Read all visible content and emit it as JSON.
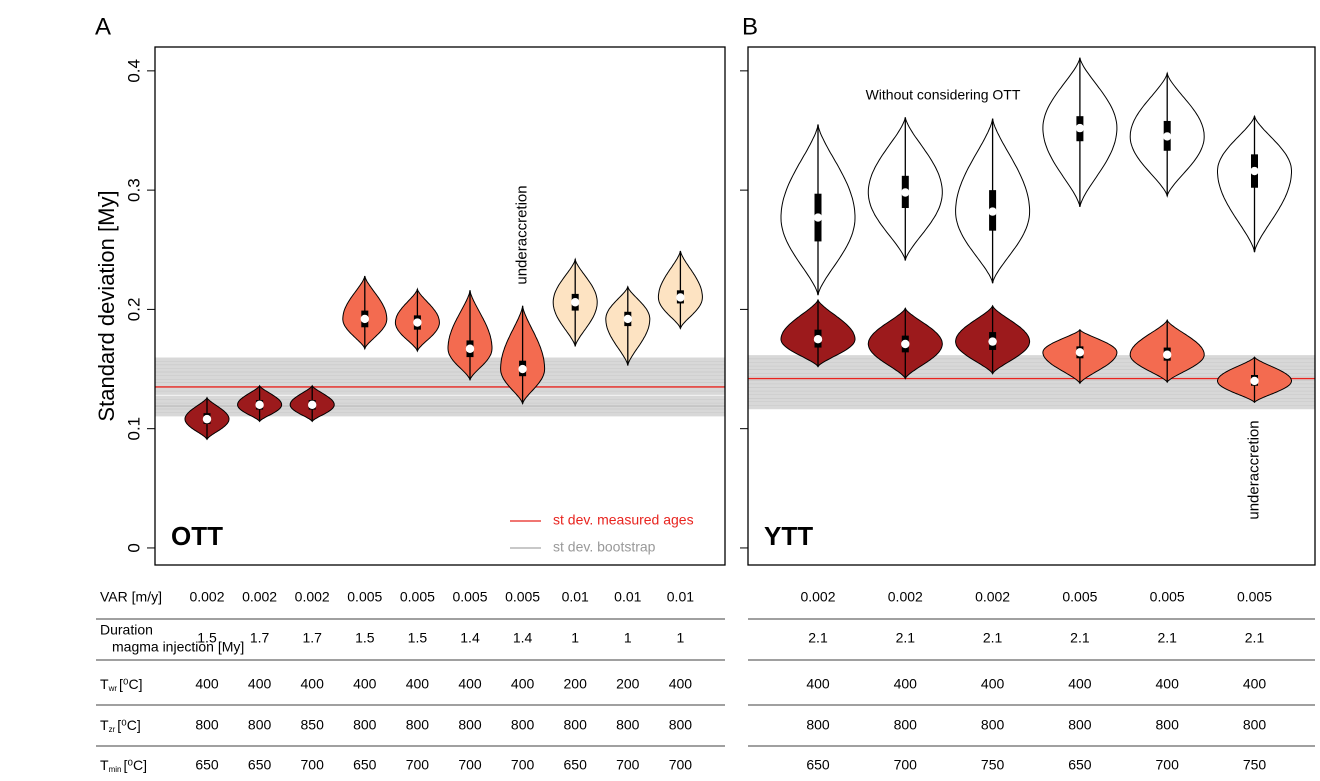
{
  "chart_data": [
    {
      "type": "violin",
      "panel_label": "A",
      "label": "OTT",
      "ylabel": "Standard deviation [My]",
      "ylim": [
        -0.0143,
        0.42
      ],
      "yticks": [
        0,
        0.1,
        0.2,
        0.3,
        0.4
      ],
      "show_ytick_labels": true,
      "bootstrap": {
        "name": "st dev. bootstrap",
        "color": "#a8a8a8",
        "values": [
          0.112,
          0.115,
          0.118,
          0.12,
          0.123,
          0.126,
          0.13,
          0.133,
          0.137,
          0.14,
          0.143,
          0.146,
          0.149,
          0.152,
          0.155,
          0.158
        ]
      },
      "reference_line": {
        "name": "st dev. measured ages",
        "color": "#e8241f",
        "value": 0.135
      },
      "annotations": [
        {
          "text": "underaccretion"
        }
      ],
      "series": [
        {
          "colors": [
            "#9c1a1c",
            "#9c1a1c",
            "#9c1a1c",
            "#f36b50",
            "#f36b50",
            "#f36b50",
            "#f36b50",
            "#fde3c2",
            "#fde3c2",
            "#fde3c2"
          ],
          "median": [
            0.108,
            0.12,
            0.12,
            0.192,
            0.189,
            0.167,
            0.15,
            0.206,
            0.192,
            0.21
          ],
          "q1": [
            0.104,
            0.116,
            0.116,
            0.185,
            0.183,
            0.16,
            0.144,
            0.199,
            0.186,
            0.205
          ],
          "q3": [
            0.113,
            0.124,
            0.124,
            0.199,
            0.195,
            0.174,
            0.157,
            0.213,
            0.198,
            0.216
          ],
          "min": [
            0.091,
            0.106,
            0.106,
            0.167,
            0.165,
            0.141,
            0.121,
            0.169,
            0.153,
            0.184
          ],
          "max": [
            0.126,
            0.136,
            0.136,
            0.228,
            0.217,
            0.216,
            0.203,
            0.242,
            0.219,
            0.249
          ]
        }
      ]
    },
    {
      "type": "violin",
      "panel_label": "B",
      "label": "YTT",
      "ylim": [
        -0.0143,
        0.42
      ],
      "yticks": [
        0,
        0.1,
        0.2,
        0.3,
        0.4
      ],
      "show_ytick_labels": false,
      "bootstrap": {
        "color": "#a8a8a8",
        "values": [
          0.118,
          0.121,
          0.124,
          0.127,
          0.13,
          0.133,
          0.136,
          0.139,
          0.142,
          0.145,
          0.148,
          0.151,
          0.154,
          0.157,
          0.16
        ]
      },
      "reference_line": {
        "color": "#e8241f",
        "value": 0.142
      },
      "annotations": [
        {
          "text": "underaccretion"
        }
      ],
      "series": [
        {
          "name": "Without considering OTT",
          "colors": [
            "#ffffff",
            "#ffffff",
            "#ffffff",
            "#ffffff",
            "#ffffff",
            "#ffffff"
          ],
          "median": [
            0.277,
            0.298,
            0.282,
            0.352,
            0.345,
            0.316
          ],
          "q1": [
            0.257,
            0.285,
            0.266,
            0.341,
            0.333,
            0.302
          ],
          "q3": [
            0.297,
            0.312,
            0.3,
            0.362,
            0.358,
            0.33
          ],
          "min": [
            0.212,
            0.241,
            0.222,
            0.286,
            0.295,
            0.248
          ],
          "max": [
            0.355,
            0.361,
            0.36,
            0.411,
            0.398,
            0.362
          ]
        },
        {
          "colors": [
            "#9c1a1c",
            "#9c1a1c",
            "#9c1a1c",
            "#f36b50",
            "#f36b50",
            "#f36b50"
          ],
          "median": [
            0.175,
            0.171,
            0.173,
            0.164,
            0.162,
            0.14
          ],
          "q1": [
            0.168,
            0.164,
            0.166,
            0.159,
            0.157,
            0.136
          ],
          "q3": [
            0.183,
            0.178,
            0.181,
            0.169,
            0.168,
            0.145
          ],
          "min": [
            0.152,
            0.142,
            0.146,
            0.138,
            0.139,
            0.122
          ],
          "max": [
            0.208,
            0.201,
            0.203,
            0.183,
            0.191,
            0.16
          ]
        }
      ]
    }
  ],
  "table": {
    "rows": [
      {
        "label": "VAR [m/y]",
        "a": [
          0.002,
          0.002,
          0.002,
          0.005,
          0.005,
          0.005,
          0.005,
          0.01,
          0.01,
          0.01
        ],
        "b": [
          0.002,
          0.002,
          0.002,
          0.005,
          0.005,
          0.005
        ]
      },
      {
        "label_lines": [
          "Duration",
          "magma injection [My]"
        ],
        "a": [
          1.5,
          1.7,
          1.7,
          1.5,
          1.5,
          1.4,
          1.4,
          1,
          1,
          1
        ],
        "b": [
          2.1,
          2.1,
          2.1,
          2.1,
          2.1,
          2.1
        ]
      },
      {
        "label": {
          "symbol": "T",
          "subscript": "wr",
          "unit": "[⁰C]"
        },
        "a": [
          400,
          400,
          400,
          400,
          400,
          400,
          400,
          200,
          200,
          400
        ],
        "b": [
          400,
          400,
          400,
          400,
          400,
          400
        ]
      },
      {
        "label": {
          "symbol": "T",
          "subscript": "zr",
          "unit": "[⁰C]"
        },
        "a": [
          800,
          800,
          850,
          800,
          800,
          800,
          800,
          800,
          800,
          800
        ],
        "b": [
          800,
          800,
          800,
          800,
          800,
          800
        ]
      },
      {
        "label": {
          "symbol": "T",
          "subscript": "min",
          "unit": "[⁰C]"
        },
        "a": [
          650,
          650,
          700,
          650,
          700,
          700,
          700,
          650,
          700,
          700
        ],
        "b": [
          650,
          700,
          750,
          650,
          700,
          750
        ]
      }
    ]
  }
}
